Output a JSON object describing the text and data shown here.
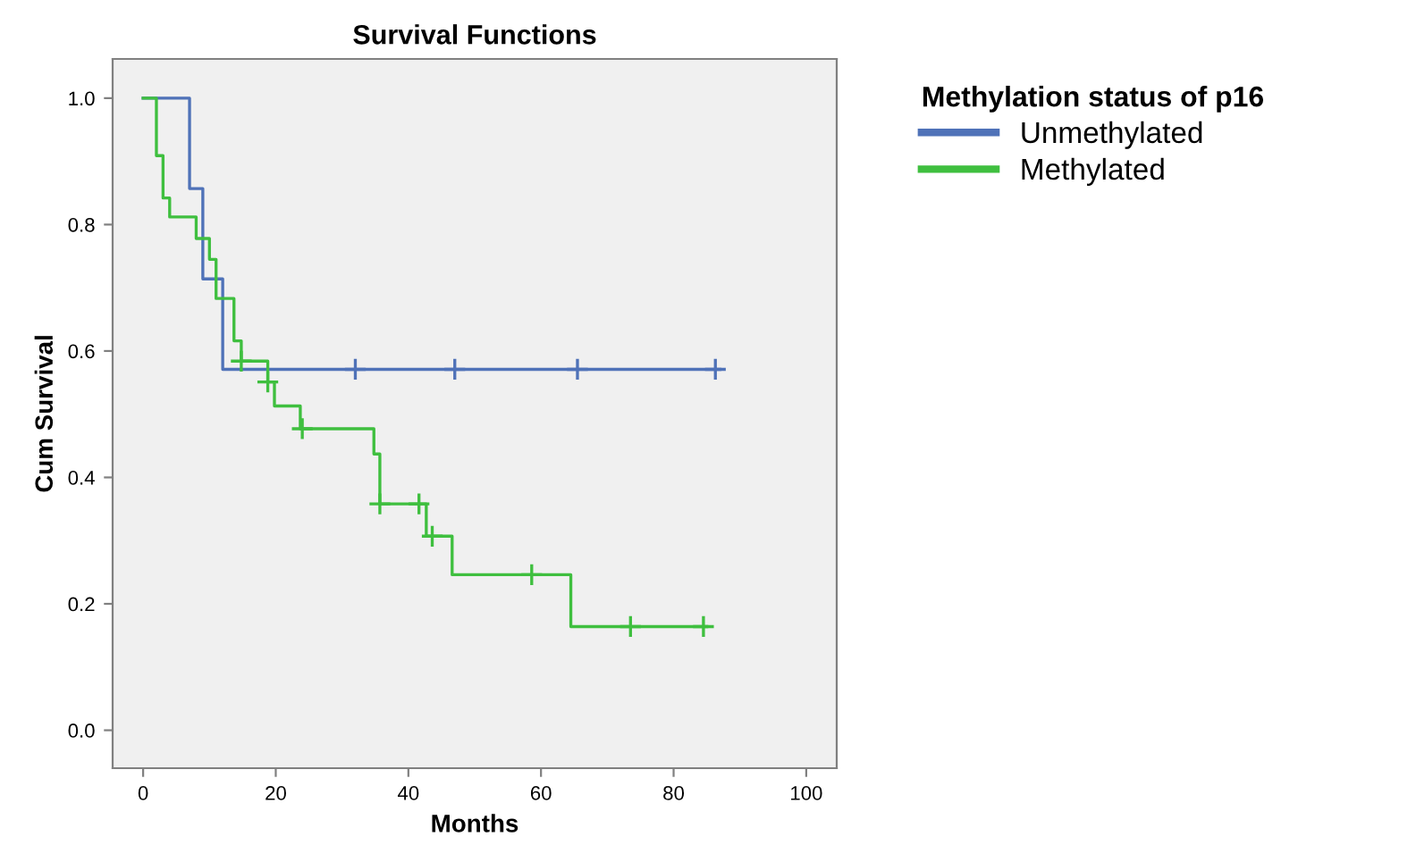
{
  "chart_data": {
    "type": "step",
    "title": "Survival Functions",
    "xlabel": "Months",
    "ylabel": "Cum Survival",
    "legend_title": "Methylation status of p16",
    "legend": "top right",
    "grid": false,
    "xlim": [
      -4.6,
      104.6
    ],
    "xticks": [
      0,
      20,
      40,
      60,
      80,
      100
    ],
    "ylim": [
      -0.06,
      1.062
    ],
    "yticks": [
      {
        "value": 0,
        "label": "0.0"
      },
      {
        "value": 0.2,
        "label": "0.2"
      },
      {
        "value": 0.4,
        "label": "0.4"
      },
      {
        "value": 0.6,
        "label": "0.6"
      },
      {
        "value": 0.8,
        "label": "0.8"
      },
      {
        "value": 1.0,
        "label": "1.0"
      }
    ],
    "series": [
      {
        "name": "Unmethylated",
        "color": "#4f72b8",
        "x": [
          0,
          7,
          9,
          12,
          87
        ],
        "values": [
          1,
          0.857,
          0.714,
          0.571,
          0.571
        ]
      },
      {
        "name": "Methylated",
        "color": "#3fbf3f",
        "x": [
          0,
          2,
          3,
          4,
          8,
          10,
          11,
          13.7,
          14.8,
          18.8,
          19.8,
          23.7,
          34.8,
          35.7,
          42.7,
          46.6,
          64.5,
          85
        ],
        "values": [
          1,
          0.909,
          0.842,
          0.812,
          0.778,
          0.745,
          0.683,
          0.616,
          0.584,
          0.551,
          0.513,
          0.477,
          0.437,
          0.358,
          0.307,
          0.246,
          0.164,
          0.164
        ]
      },
      {
        "type": "scatter",
        "marker": "cross",
        "color": "#4f72b8",
        "x": [
          32,
          47,
          65.5,
          86.3
        ],
        "values": [
          0.571,
          0.571,
          0.571,
          0.571
        ]
      },
      {
        "type": "scatter",
        "marker": "cross",
        "color": "#3fbf3f",
        "x": [
          14.8,
          18.8,
          24,
          35.7,
          41.6,
          43.6,
          58.6,
          73.5,
          84.5
        ],
        "values": [
          0.584,
          0.551,
          0.477,
          0.358,
          0.358,
          0.307,
          0.246,
          0.164,
          0.164
        ]
      }
    ]
  }
}
